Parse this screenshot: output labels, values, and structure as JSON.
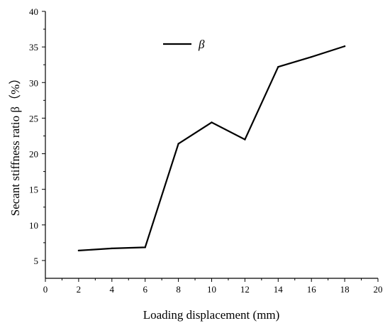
{
  "chart_data": {
    "type": "line",
    "xlabel": "Loading displacement (mm)",
    "ylabel": "Secant stiffness ratio  β（%）",
    "xlim": [
      0,
      20
    ],
    "ylim": [
      2.5,
      40
    ],
    "x_ticks": [
      0,
      2,
      4,
      6,
      8,
      10,
      12,
      14,
      16,
      18,
      20
    ],
    "y_ticks": [
      5,
      10,
      15,
      20,
      25,
      30,
      35,
      40
    ],
    "grid": false,
    "legend_position": "top-center",
    "series": [
      {
        "name": "β",
        "color": "#000000",
        "x": [
          2,
          4,
          6,
          8,
          10,
          12,
          14,
          16,
          18
        ],
        "y": [
          6.4,
          6.7,
          6.85,
          21.4,
          24.4,
          22.0,
          32.2,
          33.6,
          35.1
        ]
      }
    ]
  }
}
